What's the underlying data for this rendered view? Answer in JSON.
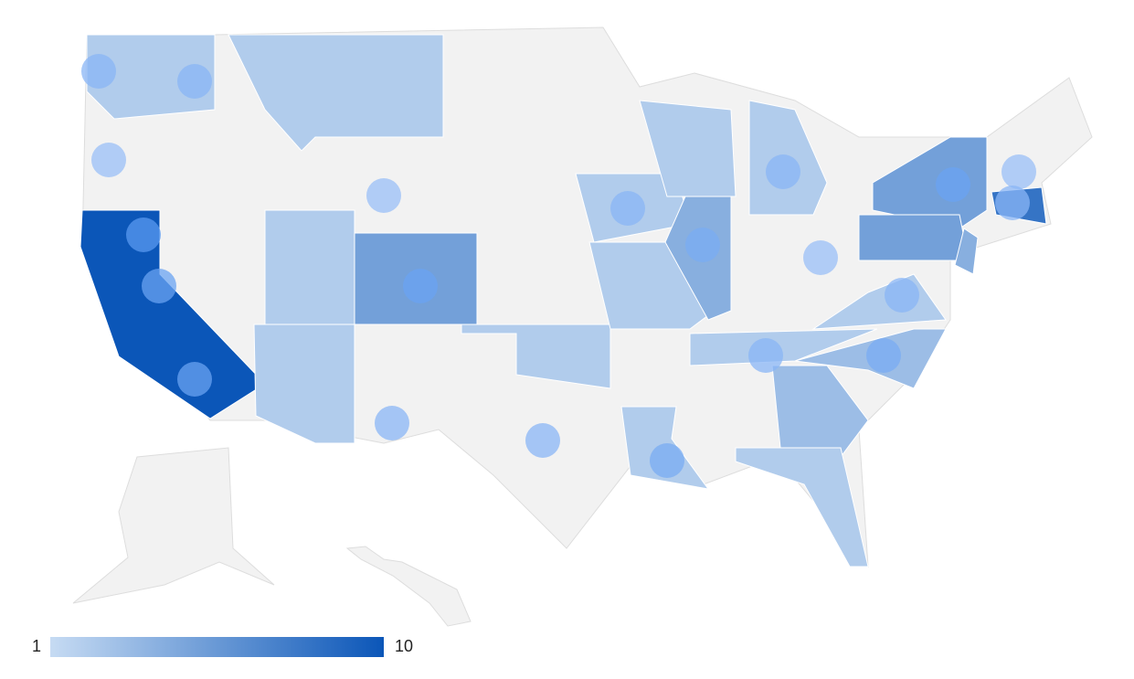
{
  "legend": {
    "min": 1,
    "max": 10,
    "min_color": "#c6dbf3",
    "max_color": "#0b56b8"
  },
  "regions": [
    10,
    2,
    2,
    2,
    2,
    5,
    2,
    2,
    2,
    4,
    2,
    2,
    5,
    5,
    4,
    8,
    2,
    3,
    2,
    3,
    2,
    2
  ],
  "markers": {
    "min_color": "#a9c9f9",
    "max_color": "#1a73e8",
    "values": [
      3,
      3,
      2,
      2,
      6,
      5,
      5,
      5,
      3,
      3,
      3,
      4,
      4,
      3,
      2,
      3,
      4,
      3,
      5,
      2,
      3
    ]
  }
}
